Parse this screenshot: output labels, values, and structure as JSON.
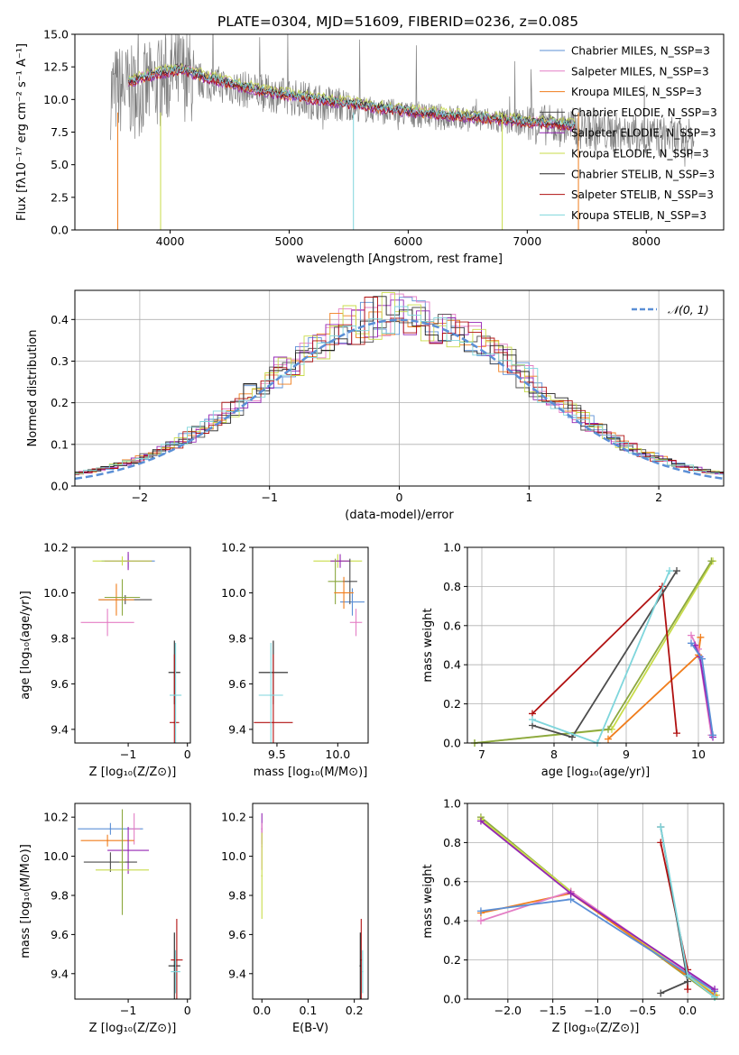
{
  "figure": {
    "title": "PLATE=0304, MJD=51609, FIBERID=0236, z=0.085"
  },
  "colors": {
    "blue": "#5b8fd6",
    "pink": "#e47ec5",
    "orange": "#f07d1c",
    "dgray": "#4d4d4d",
    "purple": "#9426b4",
    "yellowgreen": "#c8dc4a",
    "black": "#222222",
    "red": "#b01010",
    "cyan": "#7fd6dc",
    "olive": "#8ca840",
    "gray": "#808080"
  },
  "chart_data": [
    {
      "id": "spectrum",
      "type": "line",
      "xlabel": "wavelength [Angstrom, rest frame]",
      "ylabel": "Flux [fλ10⁻¹⁷ erg cm⁻² s⁻¹ A⁻¹]",
      "xlim": [
        3200,
        8650
      ],
      "ylim": [
        0,
        15
      ],
      "xticks": [
        4000,
        5000,
        6000,
        7000,
        8000
      ],
      "yticks": [
        "0.0",
        "2.5",
        "5.0",
        "7.5",
        "10.0",
        "12.5",
        "15.0"
      ],
      "legend_position": "top-right",
      "legend": [
        {
          "label": "Chabrier MILES, N_SSP=3",
          "color": "blue"
        },
        {
          "label": "Salpeter MILES, N_SSP=3",
          "color": "pink"
        },
        {
          "label": "Kroupa MILES, N_SSP=3",
          "color": "orange"
        },
        {
          "label": "Chabrier ELODIE, N_SSP=3",
          "color": "dgray"
        },
        {
          "label": "Salpeter ELODIE, N_SSP=3",
          "color": "purple"
        },
        {
          "label": "Kroupa ELODIE, N_SSP=3",
          "color": "yellowgreen"
        },
        {
          "label": "Chabrier STELIB, N_SSP=3",
          "color": "black"
        },
        {
          "label": "Salpeter STELIB, N_SSP=3",
          "color": "red"
        },
        {
          "label": "Kroupa STELIB, N_SSP=3",
          "color": "cyan"
        }
      ],
      "data_continuum": {
        "x": [
          3500,
          3600,
          3700,
          3800,
          3900,
          4000,
          4100,
          4200,
          4400,
          4600,
          4800,
          5000,
          5200,
          5400,
          5600,
          5800,
          6000,
          6200,
          6400,
          6600,
          6800,
          7000,
          7200,
          7400,
          7600,
          7800,
          8000,
          8200,
          8400
        ],
        "y": [
          10.5,
          10.8,
          10.5,
          10.8,
          11.2,
          11.8,
          12.0,
          11.5,
          11.2,
          10.8,
          10.5,
          10.2,
          9.9,
          9.6,
          9.3,
          9.1,
          8.9,
          8.7,
          8.6,
          8.5,
          8.3,
          8.2,
          8.0,
          7.8,
          7.6,
          7.4,
          7.2,
          7.1,
          6.9
        ]
      },
      "model_continuum": {
        "x": [
          3500,
          3700,
          3900,
          4100,
          4300,
          4600,
          5000,
          5400,
          5800,
          6200,
          6600,
          7000,
          7400
        ],
        "y": [
          10.8,
          11.5,
          12.0,
          12.3,
          11.7,
          11.0,
          10.3,
          9.8,
          9.3,
          8.9,
          8.6,
          8.3,
          8.0
        ]
      }
    },
    {
      "id": "residuals",
      "type": "bar",
      "xlabel": "(data-model)/error",
      "ylabel": "Normed distribution",
      "xlim": [
        -2.5,
        2.5
      ],
      "ylim": [
        0,
        0.47
      ],
      "xticks": [
        "−2",
        "−1",
        "0",
        "1",
        "2"
      ],
      "yticks": [
        "0.0",
        "0.1",
        "0.2",
        "0.3",
        "0.4"
      ],
      "grid": true,
      "legend": [
        {
          "label": "𝒩(0, 1)",
          "color": "blue",
          "style": "dashed"
        }
      ],
      "normal_curve": {
        "mean": 0,
        "sigma": 1
      }
    },
    {
      "id": "age-vs-Z",
      "type": "scatter",
      "xlabel": "Z [log₁₀(Z/Z⊙)]",
      "ylabel": "age  [log₁₀(age/yr)]",
      "xlim": [
        -1.9,
        0.05
      ],
      "ylim": [
        9.34,
        10.2
      ],
      "xticks": [
        {
          "v": -1,
          "t": "−1"
        },
        {
          "v": 0,
          "t": "0"
        }
      ],
      "yticks": [
        {
          "v": 9.4,
          "t": "9.4"
        },
        {
          "v": 9.6,
          "t": "9.6"
        },
        {
          "v": 9.8,
          "t": "9.8"
        },
        {
          "v": 10.0,
          "t": "10.0"
        },
        {
          "v": 10.2,
          "t": "10.2"
        }
      ],
      "points": [
        {
          "x": -1.0,
          "y": 10.14,
          "xe": 0.45,
          "ye": 0.03,
          "c": "blue"
        },
        {
          "x": -1.05,
          "y": 9.97,
          "xe": 0.45,
          "ye": 0.02,
          "c": "dgray"
        },
        {
          "x": -1.0,
          "y": 10.14,
          "xe": 0.4,
          "ye": 0.04,
          "c": "purple"
        },
        {
          "x": -1.1,
          "y": 10.14,
          "xe": 0.5,
          "ye": 0.02,
          "c": "yellowgreen"
        },
        {
          "x": -1.2,
          "y": 9.97,
          "xe": 0.3,
          "ye": 0.07,
          "c": "orange"
        },
        {
          "x": -1.35,
          "y": 9.87,
          "xe": 0.45,
          "ye": 0.06,
          "c": "pink"
        },
        {
          "x": -1.1,
          "y": 9.98,
          "xe": 0.3,
          "ye": 0.08,
          "c": "olive"
        },
        {
          "x": -0.22,
          "y": 9.65,
          "xe": 0.1,
          "ye": 0.14,
          "c": "black"
        },
        {
          "x": -0.22,
          "y": 9.43,
          "xe": 0.08,
          "ye": 0.3,
          "c": "red"
        },
        {
          "x": -0.2,
          "y": 9.55,
          "xe": 0.1,
          "ye": 0.23,
          "c": "cyan"
        }
      ]
    },
    {
      "id": "age-vs-mass",
      "type": "scatter",
      "xlabel": "mass [log₁₀(M/M⊙)]",
      "ylabel": "",
      "xlim": [
        9.3,
        10.25
      ],
      "ylim": [
        9.34,
        10.2
      ],
      "xticks": [
        {
          "v": 9.5,
          "t": "9.5"
        },
        {
          "v": 10.0,
          "t": "10.0"
        }
      ],
      "yticks": [
        {
          "v": 9.4,
          "t": "9.4"
        },
        {
          "v": 9.6,
          "t": "9.6"
        },
        {
          "v": 9.8,
          "t": "9.8"
        },
        {
          "v": 10.0,
          "t": "10.0"
        },
        {
          "v": 10.2,
          "t": "10.2"
        }
      ],
      "points": [
        {
          "x": 10.0,
          "y": 10.14,
          "xe": 0.2,
          "ye": 0.03,
          "c": "yellowgreen"
        },
        {
          "x": 10.02,
          "y": 10.14,
          "xe": 0.08,
          "ye": 0.03,
          "c": "purple"
        },
        {
          "x": 9.98,
          "y": 10.05,
          "xe": 0.06,
          "ye": 0.1,
          "c": "olive"
        },
        {
          "x": 10.12,
          "y": 9.96,
          "xe": 0.1,
          "ye": 0.06,
          "c": "blue"
        },
        {
          "x": 10.1,
          "y": 10.05,
          "xe": 0.06,
          "ye": 0.1,
          "c": "dgray"
        },
        {
          "x": 10.15,
          "y": 9.87,
          "xe": 0.05,
          "ye": 0.06,
          "c": "pink"
        },
        {
          "x": 10.05,
          "y": 10.0,
          "xe": 0.08,
          "ye": 0.07,
          "c": "orange"
        },
        {
          "x": 9.47,
          "y": 9.65,
          "xe": 0.12,
          "ye": 0.14,
          "c": "black"
        },
        {
          "x": 9.47,
          "y": 9.43,
          "xe": 0.16,
          "ye": 0.3,
          "c": "red"
        },
        {
          "x": 9.45,
          "y": 9.55,
          "xe": 0.1,
          "ye": 0.23,
          "c": "cyan"
        }
      ]
    },
    {
      "id": "massweight-vs-age",
      "type": "line",
      "xlabel": "age  [log₁₀(age/yr)]",
      "ylabel": "mass weight",
      "xlim": [
        6.8,
        10.35
      ],
      "ylim": [
        0,
        1
      ],
      "xticks": [
        {
          "v": 7,
          "t": "7"
        },
        {
          "v": 8,
          "t": "8"
        },
        {
          "v": 9,
          "t": "9"
        },
        {
          "v": 10,
          "t": "10"
        }
      ],
      "yticks": [
        {
          "v": 0,
          "t": "0.0"
        },
        {
          "v": 0.2,
          "t": "0.2"
        },
        {
          "v": 0.4,
          "t": "0.4"
        },
        {
          "v": 0.6,
          "t": "0.6"
        },
        {
          "v": 0.8,
          "t": "0.8"
        },
        {
          "v": 1.0,
          "t": "1.0"
        }
      ],
      "grid": true,
      "series": [
        {
          "c": "yellowgreen",
          "x": [
            6.9,
            8.8,
            10.2
          ],
          "y": [
            0.0,
            0.07,
            0.93
          ]
        },
        {
          "c": "olive",
          "x": [
            6.9,
            8.75,
            10.18
          ],
          "y": [
            0.0,
            0.07,
            0.93
          ]
        },
        {
          "c": "orange",
          "x": [
            8.75,
            10.0,
            10.03
          ],
          "y": [
            0.02,
            0.45,
            0.54
          ]
        },
        {
          "c": "pink",
          "x": [
            9.9,
            10.0,
            10.18
          ],
          "y": [
            0.55,
            0.48,
            0.04
          ]
        },
        {
          "c": "purple",
          "x": [
            9.95,
            10.02,
            10.2
          ],
          "y": [
            0.5,
            0.44,
            0.03
          ]
        },
        {
          "c": "blue",
          "x": [
            9.9,
            10.05,
            10.2
          ],
          "y": [
            0.51,
            0.43,
            0.04
          ]
        },
        {
          "c": "red",
          "x": [
            7.7,
            9.5,
            9.7
          ],
          "y": [
            0.15,
            0.8,
            0.05
          ]
        },
        {
          "c": "dgray",
          "x": [
            7.7,
            8.25,
            9.7
          ],
          "y": [
            0.09,
            0.03,
            0.88
          ]
        },
        {
          "c": "cyan",
          "x": [
            7.7,
            8.6,
            9.6
          ],
          "y": [
            0.12,
            0.0,
            0.88
          ]
        }
      ]
    },
    {
      "id": "mass-vs-Z",
      "type": "scatter",
      "xlabel": "Z [log₁₀(Z/Z⊙)]",
      "ylabel": "mass [log₁₀(M/M⊙)]",
      "xlim": [
        -1.9,
        0.05
      ],
      "ylim": [
        9.27,
        10.27
      ],
      "xticks": [
        {
          "v": -1,
          "t": "−1"
        },
        {
          "v": 0,
          "t": "0"
        }
      ],
      "yticks": [
        {
          "v": 9.4,
          "t": "9.4"
        },
        {
          "v": 9.6,
          "t": "9.6"
        },
        {
          "v": 9.8,
          "t": "9.8"
        },
        {
          "v": 10.0,
          "t": "10.0"
        },
        {
          "v": 10.2,
          "t": "10.2"
        }
      ],
      "points": [
        {
          "x": -1.3,
          "y": 10.14,
          "xe": 0.55,
          "ye": 0.03,
          "c": "blue"
        },
        {
          "x": -0.9,
          "y": 10.14,
          "xe": 0.1,
          "ye": 0.08,
          "c": "pink"
        },
        {
          "x": -1.35,
          "y": 10.08,
          "xe": 0.45,
          "ye": 0.03,
          "c": "orange"
        },
        {
          "x": -1.0,
          "y": 10.03,
          "xe": 0.35,
          "ye": 0.12,
          "c": "purple"
        },
        {
          "x": -1.3,
          "y": 9.97,
          "xe": 0.45,
          "ye": 0.05,
          "c": "dgray"
        },
        {
          "x": -1.1,
          "y": 9.93,
          "xe": 0.45,
          "ye": 0.2,
          "c": "yellowgreen"
        },
        {
          "x": -1.1,
          "y": 9.97,
          "xe": 0.05,
          "ye": 0.27,
          "c": "olive"
        },
        {
          "x": -0.22,
          "y": 9.44,
          "xe": 0.1,
          "ye": 0.17,
          "c": "black"
        },
        {
          "x": -0.18,
          "y": 9.47,
          "xe": 0.1,
          "ye": 0.21,
          "c": "red"
        },
        {
          "x": -0.2,
          "y": 9.41,
          "xe": 0.08,
          "ye": 0.11,
          "c": "cyan"
        }
      ]
    },
    {
      "id": "mass-vs-EBV",
      "type": "scatter",
      "xlabel": "E(B-V)",
      "ylabel": "",
      "xlim": [
        -0.02,
        0.23
      ],
      "ylim": [
        9.27,
        10.27
      ],
      "xticks": [
        {
          "v": 0,
          "t": "0.0"
        },
        {
          "v": 0.1,
          "t": "0.1"
        },
        {
          "v": 0.2,
          "t": "0.2"
        }
      ],
      "yticks": [
        {
          "v": 9.4,
          "t": "9.4"
        },
        {
          "v": 9.6,
          "t": "9.6"
        },
        {
          "v": 9.8,
          "t": "9.8"
        },
        {
          "v": 10.0,
          "t": "10.0"
        },
        {
          "v": 10.2,
          "t": "10.2"
        }
      ],
      "points": [
        {
          "x": 0.0,
          "y": 10.14,
          "xe": 0,
          "ye": 0.08,
          "c": "purple"
        },
        {
          "x": 0.0,
          "y": 10.05,
          "xe": 0,
          "ye": 0.12,
          "c": "pink"
        },
        {
          "x": 0.0,
          "y": 9.9,
          "xe": 0,
          "ye": 0.22,
          "c": "yellowgreen"
        },
        {
          "x": 0.215,
          "y": 9.47,
          "xe": 0,
          "ye": 0.21,
          "c": "red"
        },
        {
          "x": 0.213,
          "y": 9.44,
          "xe": 0,
          "ye": 0.17,
          "c": "black"
        },
        {
          "x": 0.218,
          "y": 9.41,
          "xe": 0,
          "ye": 0.11,
          "c": "cyan"
        }
      ]
    },
    {
      "id": "massweight-vs-Z",
      "type": "line",
      "xlabel": "Z [log₁₀(Z/Z⊙)]",
      "ylabel": "mass weight",
      "xlim": [
        -2.45,
        0.4
      ],
      "ylim": [
        0,
        1
      ],
      "xticks": [
        {
          "v": -2.0,
          "t": "−2.0"
        },
        {
          "v": -1.5,
          "t": "−1.5"
        },
        {
          "v": -1.0,
          "t": "−1.0"
        },
        {
          "v": -0.5,
          "t": "−0.5"
        },
        {
          "v": 0.0,
          "t": "0.0"
        }
      ],
      "yticks": [
        {
          "v": 0,
          "t": "0.0"
        },
        {
          "v": 0.2,
          "t": "0.2"
        },
        {
          "v": 0.4,
          "t": "0.4"
        },
        {
          "v": 0.6,
          "t": "0.6"
        },
        {
          "v": 0.8,
          "t": "0.8"
        },
        {
          "v": 1.0,
          "t": "1.0"
        }
      ],
      "grid": true,
      "series": [
        {
          "c": "olive",
          "x": [
            -2.3,
            -1.3,
            0.3
          ],
          "y": [
            0.93,
            0.55,
            0.01
          ]
        },
        {
          "c": "yellowgreen",
          "x": [
            -2.3,
            -1.3,
            0.32
          ],
          "y": [
            0.92,
            0.55,
            0.02
          ]
        },
        {
          "c": "orange",
          "x": [
            -2.3,
            -1.3,
            0.3
          ],
          "y": [
            0.44,
            0.54,
            0.02
          ]
        },
        {
          "c": "pink",
          "x": [
            -2.3,
            -1.3,
            0.3
          ],
          "y": [
            0.4,
            0.55,
            0.04
          ]
        },
        {
          "c": "blue",
          "x": [
            -2.3,
            -1.3,
            0.3
          ],
          "y": [
            0.45,
            0.51,
            0.04
          ]
        },
        {
          "c": "purple",
          "x": [
            -2.3,
            -1.3,
            0.3
          ],
          "y": [
            0.91,
            0.54,
            0.05
          ]
        },
        {
          "c": "red",
          "x": [
            -0.3,
            0.0,
            0.0
          ],
          "y": [
            0.8,
            0.15,
            0.05
          ]
        },
        {
          "c": "dgray",
          "x": [
            -0.3,
            0.0,
            -0.3
          ],
          "y": [
            0.88,
            0.09,
            0.03
          ]
        },
        {
          "c": "cyan",
          "x": [
            -0.3,
            0.0,
            0.3
          ],
          "y": [
            0.88,
            0.12,
            0.01
          ]
        }
      ]
    }
  ]
}
